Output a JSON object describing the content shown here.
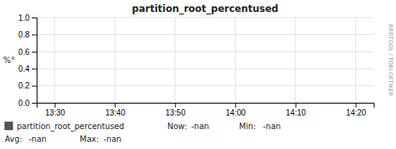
{
  "chart_data": {
    "type": "line",
    "title": "partition_root_percentused",
    "ylabel": "%°",
    "categories": [
      "13:30",
      "13:40",
      "13:50",
      "14:00",
      "14:10",
      "14:20"
    ],
    "ylim": [
      0.0,
      1.0
    ],
    "yticks": [
      {
        "value": 0.0,
        "label": "0.0"
      },
      0.2,
      0.4,
      0.6,
      0.8,
      {
        "value": 1.0,
        "label": "1.0"
      }
    ],
    "grid": true,
    "series": [
      {
        "name": "partition_root_percentused",
        "color": "#555555",
        "values": [
          null,
          null,
          null,
          null,
          null,
          null
        ]
      }
    ],
    "annotations": [
      "Now:",
      "-nan",
      "Min:",
      "-nan",
      "Avg:",
      "-nan",
      "Max:",
      "-nan",
      "RRDTOOL / TOBI OETIKER"
    ]
  }
}
